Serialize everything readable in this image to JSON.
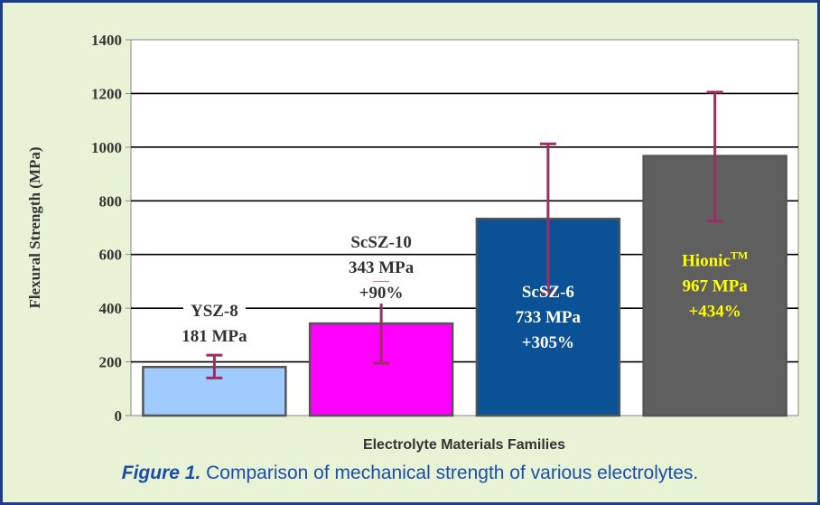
{
  "chart_data": {
    "type": "bar",
    "ylabel": "Flexural Strength (MPa)",
    "xlabel": "Electrolyte Materials Families",
    "ylim": [
      0,
      1400
    ],
    "yticks": [
      0,
      200,
      400,
      600,
      800,
      1000,
      1200,
      1400
    ],
    "grid": true,
    "bars": [
      {
        "category": "YSZ-8",
        "value": 181,
        "err_low": 140,
        "err_high": 225,
        "color": "#9fcbff",
        "label_lines": [
          "YSZ-8",
          "181 MPa"
        ],
        "label_color": "#333333"
      },
      {
        "category": "ScSZ-10",
        "value": 343,
        "err_low": 195,
        "err_high": 495,
        "color": "#ff00ff",
        "label_lines": [
          "ScSZ-10",
          "343 MPa",
          "+90%"
        ],
        "label_color": "#333333"
      },
      {
        "category": "ScSZ-6",
        "value": 733,
        "err_low": 455,
        "err_high": 1012,
        "color": "#0a5196",
        "label_lines": [
          "ScSZ-6",
          "733 MPa",
          "+305%"
        ],
        "label_color": "#ffffff"
      },
      {
        "category": "Hionic",
        "value": 967,
        "err_low": 725,
        "err_high": 1205,
        "color": "#5f5f5f",
        "label_lines": [
          "Hionic",
          "967 MPa",
          "+434%"
        ],
        "label_color": "#ffff00",
        "label_superscript": "TM"
      }
    ],
    "error_bar_color": "#9c2f62"
  },
  "caption": {
    "figure_label": "Figure 1.",
    "text": " Comparison of mechanical strength of various electrolytes."
  }
}
